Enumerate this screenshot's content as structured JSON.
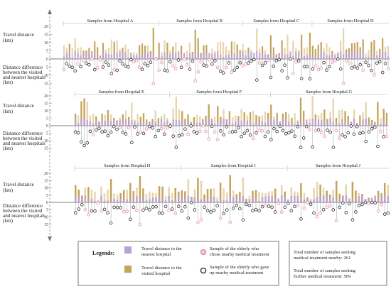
{
  "labels": {
    "travel_distance": [
      "Travel distance",
      "(km)"
    ],
    "distance_difference": [
      "Distance difference",
      "between the visited",
      "and nearest hospitals",
      "(km)"
    ]
  },
  "legend": {
    "title": "Legends:",
    "nearest": [
      "Travel distance to the",
      "nearest hospital"
    ],
    "visited": [
      "Travel distance to the",
      "visited hospital"
    ],
    "chose": [
      "Sample of the elderly who",
      "chose nearby medical treatment"
    ],
    "gave_up": [
      "Sample of the elderly who gave",
      "up nearby medical treatment"
    ]
  },
  "totals": {
    "nearby": [
      "Total number of samples seeking",
      "medical treatment nearby:  261"
    ],
    "further": [
      "Total number of samples seeking",
      "further medical treatment:  569"
    ]
  },
  "colors": {
    "nearest": "#b9a0d8",
    "visited": "#c4a35a",
    "visited_light": "#e6d5ae",
    "chose_marker": "#e88aa8",
    "gave_up_marker": "#333333",
    "axis": "#777777"
  },
  "chart_data": {
    "type": "bar",
    "ylim_top": [
      0,
      20
    ],
    "ylim_bottom": [
      0,
      15
    ],
    "top_ticks": [
      "20",
      "15",
      "10",
      "5",
      "0"
    ],
    "bottom_ticks": [
      "5",
      "10",
      "15"
    ],
    "rows": [
      {
        "hospitals": [
          {
            "name": "Samples from Hospital A",
            "samples": 34
          },
          {
            "name": "Samples from Hospital B",
            "samples": 30
          },
          {
            "name": "Samples from Hospital C",
            "samples": 25
          },
          {
            "name": "Samples from Hospital D",
            "samples": 28
          }
        ]
      },
      {
        "hospitals": [
          {
            "name": "Samples from Hospital E",
            "samples": 32
          },
          {
            "name": "Samples from Hospital F",
            "samples": 34
          },
          {
            "name": "Samples from Hospital G",
            "samples": 40
          }
        ]
      },
      {
        "hospitals": [
          {
            "name": "Samples from Hospital H",
            "samples": 33
          },
          {
            "name": "Samples from Hospital I",
            "samples": 33
          },
          {
            "name": "Samples from Hospital J",
            "samples": 32
          }
        ]
      }
    ],
    "series": [
      {
        "name": "Travel distance to the nearest hospital"
      },
      {
        "name": "Travel distance to the visited hospital"
      }
    ]
  }
}
